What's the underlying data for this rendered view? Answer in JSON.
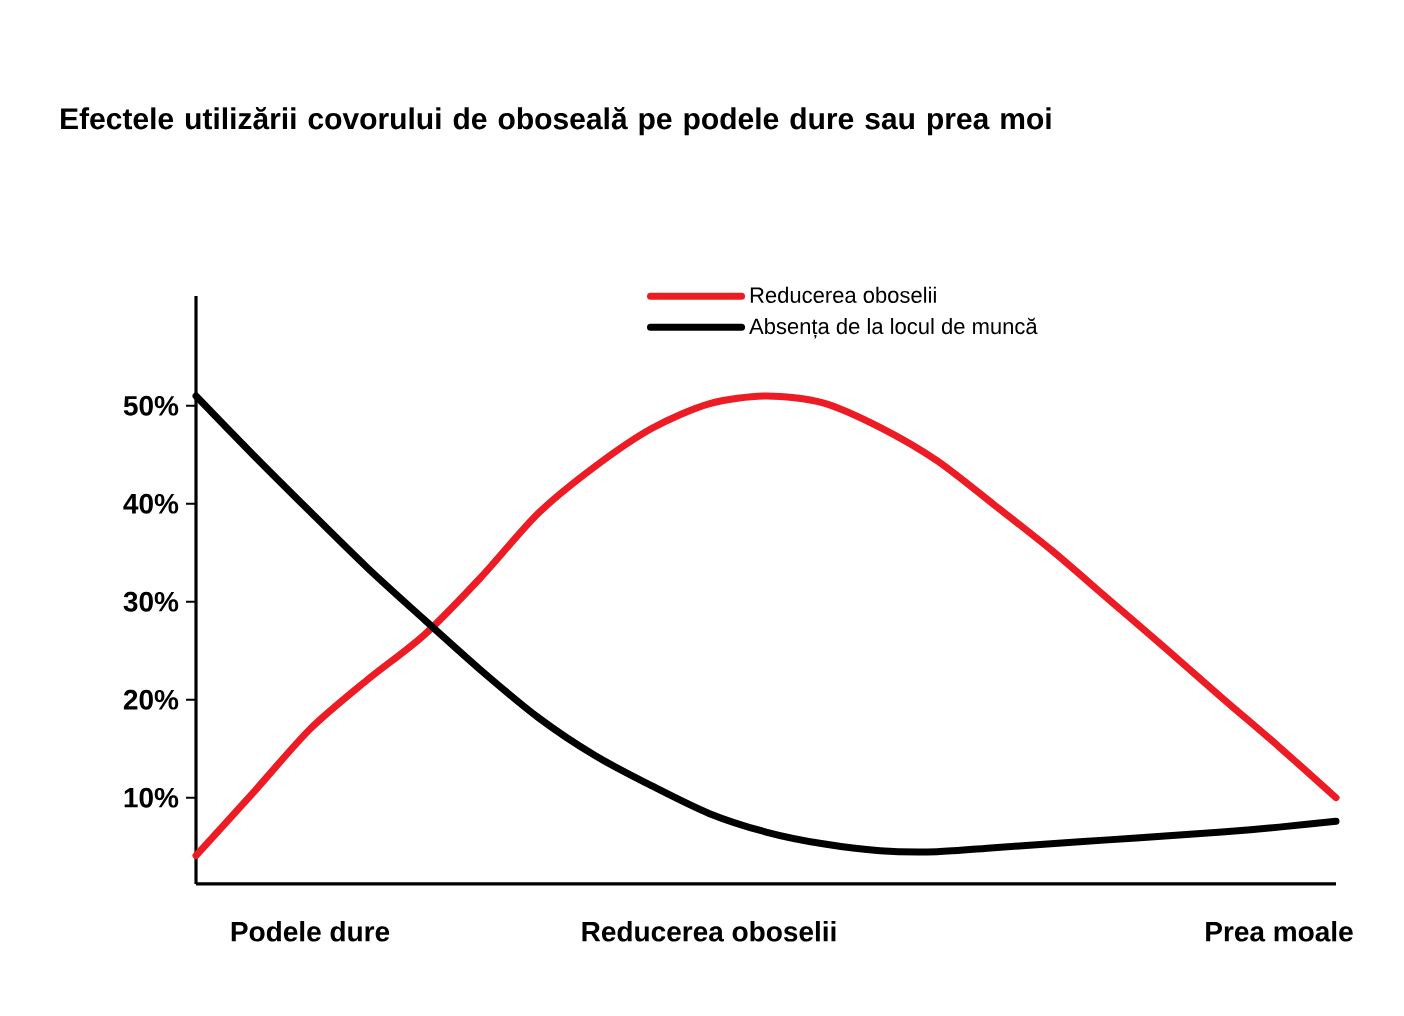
{
  "chart_data": {
    "type": "line",
    "title": "Efectele utilizării covorului de oboseală pe podele dure sau prea moi",
    "categories": [
      null,
      null,
      "Podele dure",
      null,
      null,
      null,
      null,
      null,
      null,
      "Reducerea oboselii",
      null,
      null,
      null,
      null,
      null,
      null,
      null,
      null,
      null,
      "Prea moale",
      null
    ],
    "ylim": [
      1.2,
      61.2
    ],
    "yticks": [
      {
        "value": 10,
        "label": "10%"
      },
      {
        "value": 20,
        "label": "20%"
      },
      {
        "value": 30,
        "label": "30%"
      },
      {
        "value": 40,
        "label": "40%"
      },
      {
        "value": 50,
        "label": "50%"
      }
    ],
    "legend": "top right",
    "marker": "none",
    "line_style": "solid",
    "series": [
      {
        "name": "Reducerea oboselii",
        "color": "#ed1c24",
        "values": [
          4.1,
          10.5,
          17,
          22,
          26.6,
          32.5,
          39,
          43.8,
          47.7,
          50.2,
          51.0,
          50.3,
          47.8,
          44.4,
          39.9,
          35.3,
          30.3,
          25.3,
          20.2,
          15.2,
          10
        ]
      },
      {
        "name": "Absența de la locul de muncă",
        "color": "#000000",
        "values": [
          51,
          45,
          39.2,
          33.5,
          28.2,
          23,
          18.2,
          14.3,
          11.2,
          8.4,
          6.5,
          5.3,
          4.6,
          4.5,
          4.9,
          5.3,
          5.7,
          6.1,
          6.5,
          7,
          7.6
        ]
      }
    ]
  }
}
